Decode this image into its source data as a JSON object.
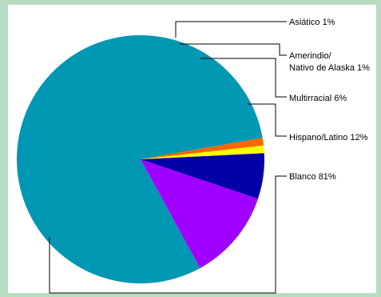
{
  "chart_data": {
    "type": "pie",
    "slices": [
      {
        "label": "Blanco",
        "value_label": "81%",
        "value": 81,
        "color": "#0097b2"
      },
      {
        "label": "Hispano/Latino",
        "value_label": "12%",
        "value": 12,
        "color": "#a000ff"
      },
      {
        "label": "Multirracial",
        "value_label": "6%",
        "value": 6,
        "color": "#0000a8"
      },
      {
        "label": "Amerindio/ Nativo de Alaska",
        "value_label": "1%",
        "value": 1,
        "color": "#ffff00"
      },
      {
        "label": "Asiático",
        "value_label": "1%",
        "value": 1,
        "color": "#ff6600"
      }
    ],
    "label_lines": [
      [
        "Asiático 1%"
      ],
      [
        "Amerindio/",
        "Nativo de Alaska 1%"
      ],
      [
        "Multirracial 6%"
      ],
      [
        "Hispano/Latino 12%"
      ],
      [
        "Blanco 81%"
      ]
    ],
    "start_angle_deg": 10,
    "direction": "counterclockwise",
    "legend": "leader-line labels to the right"
  }
}
